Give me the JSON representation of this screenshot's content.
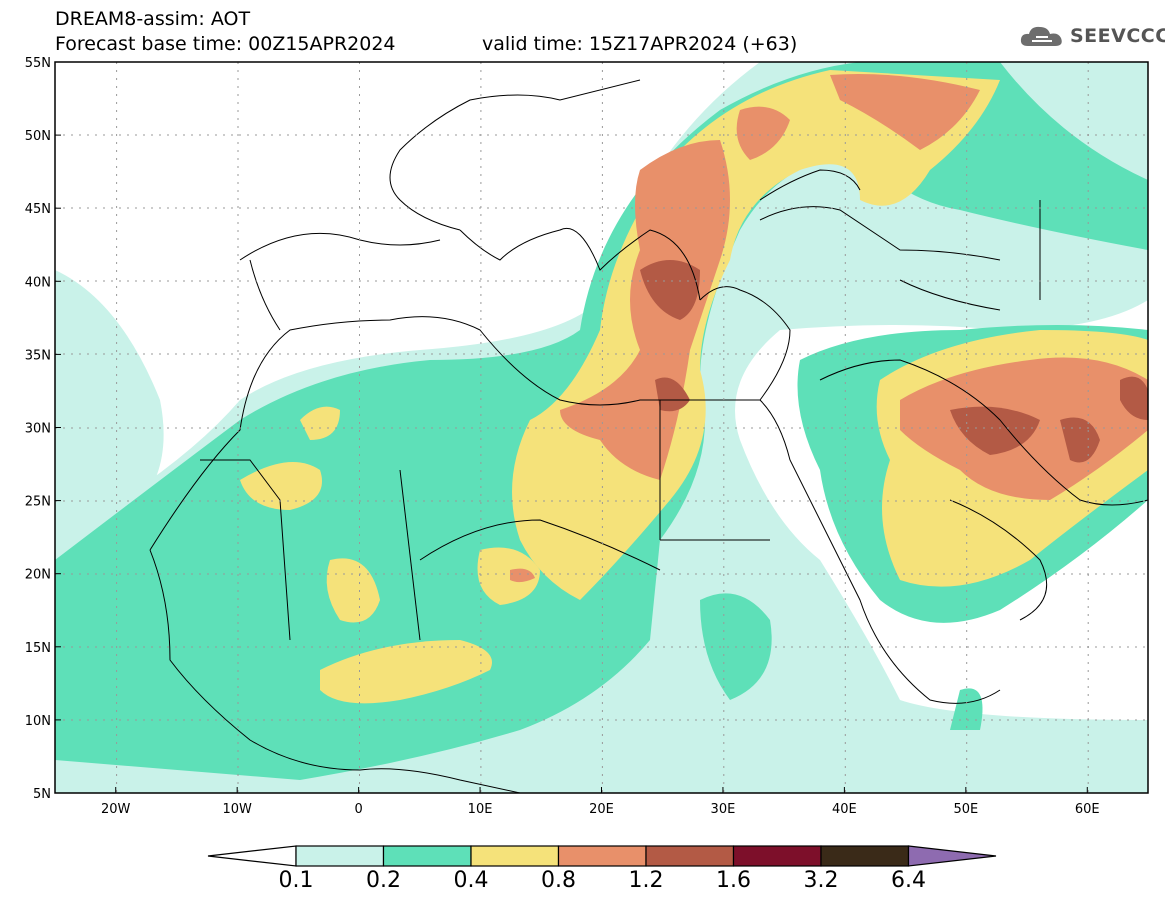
{
  "header": {
    "title": "DREAM8-assim: AOT",
    "base_time": "Forecast base time: 00Z15APR2024",
    "valid_time": "valid time: 15Z17APR2024 (+63)"
  },
  "logo": {
    "text": "SEEVCCC",
    "icon": "cloud-icon"
  },
  "axes": {
    "lat_labels": [
      "55N",
      "50N",
      "45N",
      "40N",
      "35N",
      "30N",
      "25N",
      "20N",
      "15N",
      "10N",
      "5N"
    ],
    "lon_labels": [
      "20W",
      "10W",
      "0",
      "10E",
      "20E",
      "30E",
      "40E",
      "50E",
      "60E"
    ],
    "lon_range": [
      -25,
      65
    ],
    "lat_range": [
      5,
      55
    ],
    "lon_values": [
      -20,
      -10,
      0,
      10,
      20,
      30,
      40,
      50,
      60
    ],
    "lat_values": [
      55,
      50,
      45,
      40,
      35,
      30,
      25,
      20,
      15,
      10,
      5
    ]
  },
  "colorbar": {
    "labels": [
      "0.1",
      "0.2",
      "0.4",
      "0.8",
      "1.2",
      "1.6",
      "3.2",
      "6.4"
    ],
    "colors": [
      "#ffffff",
      "#c9f2e9",
      "#5ee0b8",
      "#f5e27a",
      "#e8906a",
      "#b35a45",
      "#7d0f2a",
      "#3a2a18",
      "#8e6bb0"
    ]
  },
  "grid": "dotted"
}
